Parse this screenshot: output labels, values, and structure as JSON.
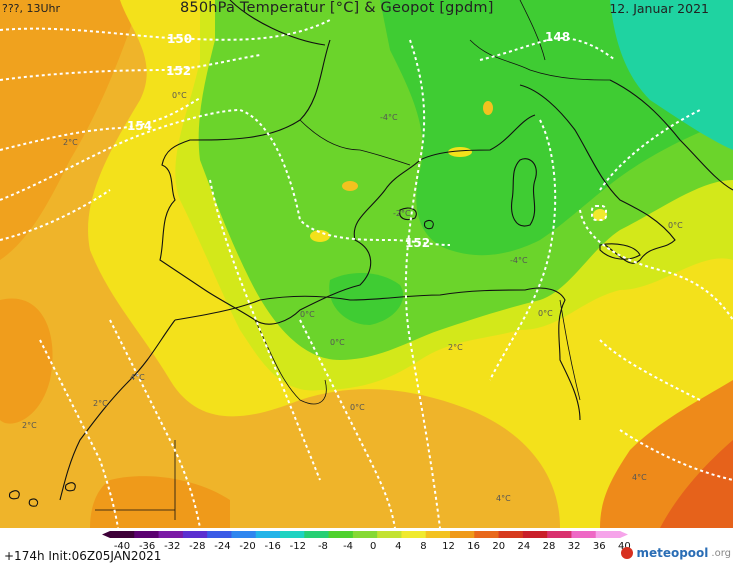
{
  "header": {
    "left": "???, 13Uhr",
    "title": "850hPa Temperatur [°C] & Geopot [gpdm]",
    "date": "12. Januar 2021"
  },
  "footer": {
    "run": "+174h  Init:06Z05JAN2021",
    "logo_name": "meteopool",
    "logo_suffix": ".org"
  },
  "legend": {
    "ticks": [
      "-40",
      "-36",
      "-32",
      "-28",
      "-24",
      "-20",
      "-16",
      "-12",
      "-8",
      "-4",
      "0",
      "4",
      "8",
      "12",
      "16",
      "20",
      "24",
      "28",
      "32",
      "36",
      "40"
    ],
    "colors": [
      "#3d0038",
      "#5a0070",
      "#7a1aa6",
      "#5b2fd0",
      "#3b5be6",
      "#2f86ef",
      "#23b4e8",
      "#1fd3c1",
      "#27cf73",
      "#4fd12e",
      "#86d934",
      "#c3e232",
      "#f0ea2e",
      "#f3c21f",
      "#ef9a1a",
      "#e8681b",
      "#d63a1e",
      "#c91f2a",
      "#d9326f",
      "#ee68c5",
      "#f6a4ea"
    ]
  },
  "contours": {
    "geopot_labels": [
      "150",
      "152",
      "154",
      "148",
      "152"
    ],
    "temp_labels": [
      "0°C",
      "0°C",
      "0°C",
      "0°C",
      "0°C",
      "2°C",
      "2°C",
      "2°C",
      "4°C",
      "4°C",
      "2°C",
      "4°C",
      "-2°C",
      "-4°C",
      "-4°C",
      "0°C"
    ]
  }
}
